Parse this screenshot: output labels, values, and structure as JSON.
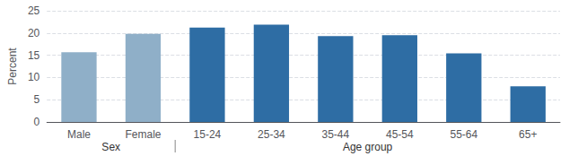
{
  "chart_data": {
    "type": "bar",
    "categories": [
      "Male",
      "Female",
      "15-24",
      "25-34",
      "35-44",
      "45-54",
      "55-64",
      "65+"
    ],
    "values": [
      15.7,
      19.8,
      21.2,
      21.9,
      19.3,
      19.5,
      15.4,
      8.0
    ],
    "colors": [
      "#8fafc8",
      "#8fafc8",
      "#2e6da4",
      "#2e6da4",
      "#2e6da4",
      "#2e6da4",
      "#2e6da4",
      "#2e6da4"
    ],
    "ylabel": "Percent",
    "ylim": [
      0,
      25
    ],
    "yticks": [
      0,
      5,
      10,
      15,
      20,
      25
    ],
    "grid": true,
    "annotations": [
      {
        "text": "Sex",
        "categories": [
          "Male",
          "Female"
        ]
      },
      {
        "text": "Age group",
        "categories": [
          "15-24",
          "25-34",
          "35-44",
          "45-54",
          "55-64",
          "65+"
        ]
      }
    ]
  }
}
